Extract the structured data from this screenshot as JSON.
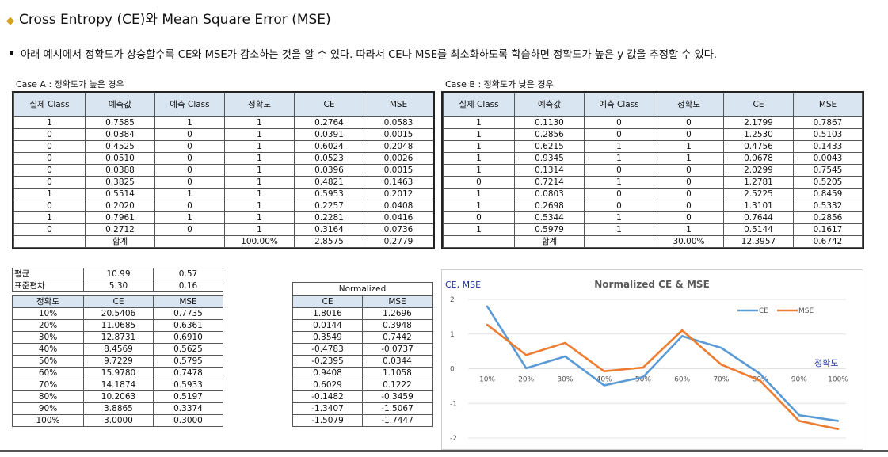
{
  "title": "Cross Entropy (CE)와 Mean Square Error (MSE)",
  "bullet": "아래 예시에서 정확도가 상승할수록 CE와 MSE가 감소하는 것을 알 수 있다. 따라서 CE나 MSE를 최소화하도록 학습하면 정확도가 높은 y 값을 추정할 수 있다.",
  "caseA": {
    "caption": "Case A : 정확도가 높은 경우",
    "headers": [
      "실제 Class",
      "예측값",
      "예측 Class",
      "정확도",
      "CE",
      "MSE"
    ],
    "rows": [
      [
        "1",
        "0.7585",
        "1",
        "1",
        "0.2764",
        "0.0583"
      ],
      [
        "0",
        "0.0384",
        "0",
        "1",
        "0.0391",
        "0.0015"
      ],
      [
        "0",
        "0.4525",
        "0",
        "1",
        "0.6024",
        "0.2048"
      ],
      [
        "0",
        "0.0510",
        "0",
        "1",
        "0.0523",
        "0.0026"
      ],
      [
        "0",
        "0.0388",
        "0",
        "1",
        "0.0396",
        "0.0015"
      ],
      [
        "0",
        "0.3825",
        "0",
        "1",
        "0.4821",
        "0.1463"
      ],
      [
        "1",
        "0.5514",
        "1",
        "1",
        "0.5953",
        "0.2012"
      ],
      [
        "0",
        "0.2020",
        "0",
        "1",
        "0.2257",
        "0.0408"
      ],
      [
        "1",
        "0.7961",
        "1",
        "1",
        "0.2281",
        "0.0416"
      ],
      [
        "0",
        "0.2712",
        "0",
        "1",
        "0.3164",
        "0.0736"
      ]
    ],
    "total": [
      "",
      "합계",
      "",
      "100.00%",
      "2.8575",
      "0.2779"
    ]
  },
  "caseB": {
    "caption": "Case B : 정확도가 낮은 경우",
    "headers": [
      "실제 Class",
      "예측값",
      "예측 Class",
      "정확도",
      "CE",
      "MSE"
    ],
    "rows": [
      [
        "1",
        "0.1130",
        "0",
        "0",
        "2.1799",
        "0.7867"
      ],
      [
        "1",
        "0.2856",
        "0",
        "0",
        "1.2530",
        "0.5103"
      ],
      [
        "1",
        "0.6215",
        "1",
        "1",
        "0.4756",
        "0.1433"
      ],
      [
        "1",
        "0.9345",
        "1",
        "1",
        "0.0678",
        "0.0043"
      ],
      [
        "1",
        "0.1314",
        "0",
        "0",
        "2.0299",
        "0.7545"
      ],
      [
        "0",
        "0.7214",
        "1",
        "0",
        "1.2781",
        "0.5205"
      ],
      [
        "1",
        "0.0803",
        "0",
        "0",
        "2.5225",
        "0.8459"
      ],
      [
        "1",
        "0.2698",
        "0",
        "0",
        "1.3101",
        "0.5332"
      ],
      [
        "0",
        "0.5344",
        "1",
        "0",
        "0.7644",
        "0.2856"
      ],
      [
        "1",
        "0.5979",
        "1",
        "1",
        "0.5144",
        "0.1617"
      ]
    ],
    "total": [
      "",
      "합계",
      "",
      "30.00%",
      "12.3957",
      "0.6742"
    ]
  },
  "stats": {
    "mean_label": "평균",
    "mean": [
      "10.99",
      "0.57"
    ],
    "std_label": "표준편차",
    "std": [
      "5.30",
      "0.16"
    ]
  },
  "acc_table": {
    "headers": [
      "정확도",
      "CE",
      "MSE"
    ],
    "rows": [
      [
        "10%",
        "20.5406",
        "0.7735"
      ],
      [
        "20%",
        "11.0685",
        "0.6361"
      ],
      [
        "30%",
        "12.8731",
        "0.6910"
      ],
      [
        "40%",
        "8.4569",
        "0.5625"
      ],
      [
        "50%",
        "9.7229",
        "0.5795"
      ],
      [
        "60%",
        "15.9780",
        "0.7478"
      ],
      [
        "70%",
        "14.1874",
        "0.5933"
      ],
      [
        "80%",
        "10.2063",
        "0.5197"
      ],
      [
        "90%",
        "3.8865",
        "0.3374"
      ],
      [
        "100%",
        "3.0000",
        "0.3000"
      ]
    ]
  },
  "norm_table": {
    "caption": "Normalized",
    "headers": [
      "CE",
      "MSE"
    ],
    "rows": [
      [
        "1.8016",
        "1.2696"
      ],
      [
        "0.0144",
        "0.3948"
      ],
      [
        "0.3549",
        "0.7442"
      ],
      [
        "-0.4783",
        "-0.0737"
      ],
      [
        "-0.2395",
        "0.0344"
      ],
      [
        "0.9408",
        "1.1058"
      ],
      [
        "0.6029",
        "0.1222"
      ],
      [
        "-0.1482",
        "-0.3459"
      ],
      [
        "-1.3407",
        "-1.5067"
      ],
      [
        "-1.5079",
        "-1.7447"
      ]
    ]
  },
  "chart_data": {
    "type": "line",
    "title": "Normalized CE & MSE",
    "ylabel": "CE, MSE",
    "xlabel": "정확도",
    "categories": [
      "10%",
      "20%",
      "30%",
      "40%",
      "50%",
      "60%",
      "70%",
      "80%",
      "90%",
      "100%"
    ],
    "ylim": [
      -2,
      2
    ],
    "yticks": [
      "2",
      "1",
      "0",
      "-1",
      "-2"
    ],
    "grid": true,
    "legend": "top-right",
    "series": [
      {
        "name": "CE",
        "color": "#5b9bd5",
        "values": [
          1.8016,
          0.0144,
          0.3549,
          -0.4783,
          -0.2395,
          0.9408,
          0.6029,
          -0.1482,
          -1.3407,
          -1.5079
        ]
      },
      {
        "name": "MSE",
        "color": "#ed7d31",
        "values": [
          1.2696,
          0.3948,
          0.7442,
          -0.0737,
          0.0344,
          1.1058,
          0.1222,
          -0.3459,
          -1.5067,
          -1.7447
        ]
      }
    ]
  }
}
